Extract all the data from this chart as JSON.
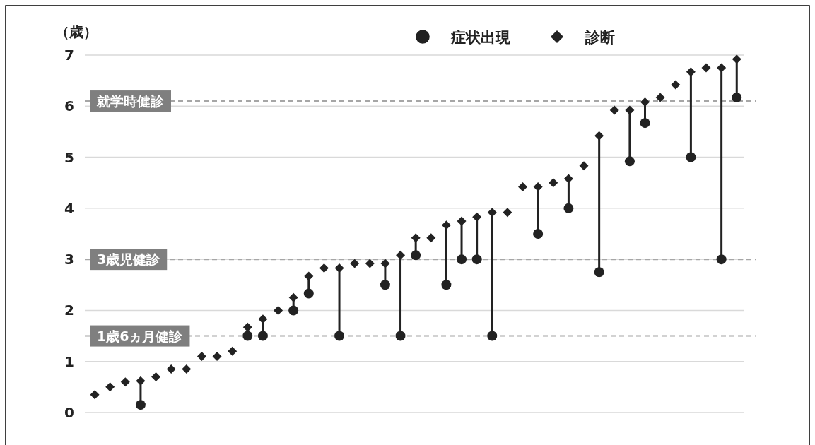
{
  "chart_data": {
    "type": "scatter",
    "ylabel": "（歳）",
    "categories": [
      null,
      null,
      null,
      null,
      null,
      null,
      null,
      null,
      null,
      null,
      null,
      null,
      null,
      null,
      null,
      null,
      null,
      null,
      null,
      null,
      null,
      null,
      null,
      null,
      null,
      null,
      null,
      null,
      null,
      null,
      null,
      null,
      null,
      null,
      null,
      null,
      null,
      null,
      null,
      null,
      null,
      null,
      null
    ],
    "series": [
      {
        "name": "症状出現",
        "color": "#222222",
        "marker": "circle",
        "values": [
          null,
          null,
          null,
          0.15,
          null,
          null,
          null,
          null,
          null,
          null,
          1.5,
          1.5,
          null,
          2.0,
          2.33,
          null,
          1.5,
          null,
          null,
          2.5,
          1.5,
          3.08,
          null,
          2.5,
          3.0,
          3.0,
          1.5,
          null,
          null,
          3.5,
          null,
          4.0,
          null,
          2.75,
          null,
          4.92,
          5.67,
          null,
          null,
          5.0,
          null,
          3.0,
          6.17
        ]
      },
      {
        "name": "診断",
        "color": "#222222",
        "marker": "diamond",
        "values": [
          0.35,
          0.5,
          0.6,
          0.62,
          0.7,
          0.85,
          0.85,
          1.1,
          1.1,
          1.2,
          1.67,
          1.83,
          2.0,
          2.25,
          2.67,
          2.83,
          2.83,
          2.92,
          2.92,
          2.92,
          3.08,
          3.42,
          3.42,
          3.67,
          3.75,
          3.83,
          3.92,
          3.92,
          4.42,
          4.42,
          4.5,
          4.58,
          4.83,
          5.42,
          5.92,
          5.92,
          6.08,
          6.17,
          6.42,
          6.67,
          6.75,
          6.75,
          6.92
        ]
      }
    ],
    "ylim": [
      0,
      7
    ],
    "yticks": [
      0,
      1,
      2,
      3,
      4,
      5,
      6,
      7
    ],
    "grid": "y",
    "legend": "top",
    "ref_lines": [
      {
        "axis": "y",
        "value": 6.1,
        "label": "就学時健診",
        "color": "#a6a6a6",
        "line_style": "dashed"
      },
      {
        "axis": "y",
        "value": 3,
        "label": "3歳児健診",
        "color": "#a6a6a6",
        "line_style": "dashed"
      },
      {
        "axis": "y",
        "value": 1.5,
        "label": "1歳6ヵ月健診",
        "color": "#a6a6a6",
        "line_style": "dashed"
      }
    ]
  }
}
